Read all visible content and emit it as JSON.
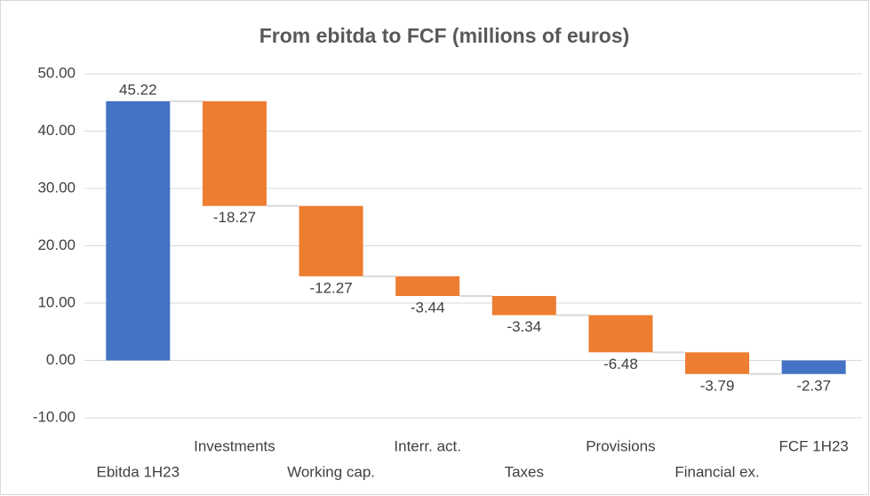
{
  "chart_data": {
    "type": "waterfall",
    "title": "From ebitda to FCF (millions of euros)",
    "categories": [
      "Ebitda 1H23",
      "Investments",
      "Working cap.",
      "Interr. act.",
      "Taxes",
      "Provisions",
      "Financial ex.",
      "FCF 1H23"
    ],
    "values": [
      45.22,
      -18.27,
      -12.27,
      -3.44,
      -3.34,
      -6.48,
      -3.79,
      -2.37
    ],
    "measure": [
      "absolute",
      "relative",
      "relative",
      "relative",
      "relative",
      "relative",
      "relative",
      "total"
    ],
    "colors": [
      "#4472c4",
      "#ed7d31",
      "#ed7d31",
      "#ed7d31",
      "#ed7d31",
      "#ed7d31",
      "#ed7d31",
      "#4472c4"
    ],
    "ylim": [
      -10,
      50
    ],
    "yticks": [
      {
        "value": -10,
        "label": "-10.00"
      },
      {
        "value": 0,
        "label": "0.00"
      },
      {
        "value": 10,
        "label": "10.00"
      },
      {
        "value": 20,
        "label": "20.00"
      },
      {
        "value": 30,
        "label": "30.00"
      },
      {
        "value": 40,
        "label": "40.00"
      },
      {
        "value": 50,
        "label": "50.00"
      }
    ],
    "grid": true
  }
}
